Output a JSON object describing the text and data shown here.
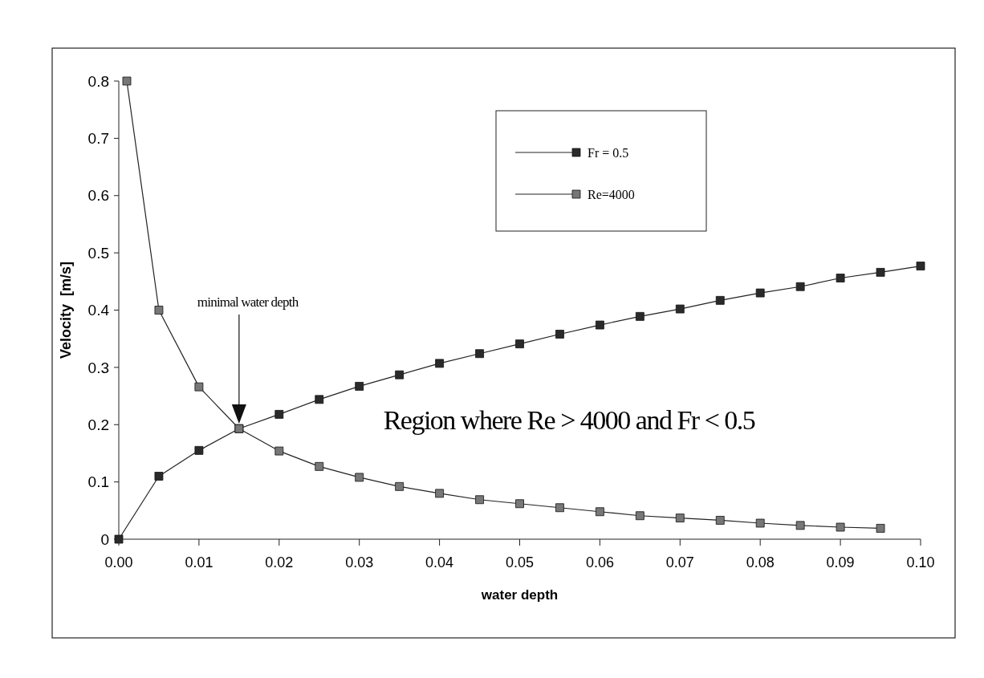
{
  "chart_data": {
    "type": "line",
    "xlabel": "water depth",
    "ylabel": "Velocity  [m/s]",
    "xlim": [
      0,
      0.1
    ],
    "ylim": [
      0,
      0.8
    ],
    "xticks": [
      {
        "value": 0,
        "label": "0.00"
      },
      {
        "value": 0.01,
        "label": "0.01"
      },
      {
        "value": 0.02,
        "label": "0.02"
      },
      {
        "value": 0.03,
        "label": "0.03"
      },
      {
        "value": 0.04,
        "label": "0.04"
      },
      {
        "value": 0.05,
        "label": "0.05"
      },
      {
        "value": 0.06,
        "label": "0.06"
      },
      {
        "value": 0.07,
        "label": "0.07"
      },
      {
        "value": 0.08,
        "label": "0.08"
      },
      {
        "value": 0.09,
        "label": "0.09"
      },
      {
        "value": 0.1,
        "label": "0.10"
      }
    ],
    "yticks": [
      0,
      0.1,
      0.2,
      0.3,
      0.4,
      0.5,
      0.6,
      0.7,
      0.8
    ],
    "grid": false,
    "legend": "top right",
    "marker": "square",
    "line_style": "solid",
    "series": [
      {
        "name": "Fr = 0.5",
        "color": "#2a2a2a",
        "x": [
          0,
          0.005,
          0.01,
          0.015,
          0.02,
          0.025,
          0.03,
          0.035,
          0.04,
          0.045,
          0.05,
          0.055,
          0.06,
          0.065,
          0.07,
          0.075,
          0.08,
          0.085,
          0.09,
          0.095,
          0.1
        ],
        "values": [
          0,
          0.11,
          0.155,
          0.193,
          0.218,
          0.244,
          0.267,
          0.287,
          0.307,
          0.324,
          0.341,
          0.358,
          0.374,
          0.389,
          0.402,
          0.417,
          0.43,
          0.441,
          0.456,
          0.466,
          0.477
        ]
      },
      {
        "name": "Re=4000",
        "color": "#777777",
        "x": [
          0.001,
          0.005,
          0.01,
          0.015,
          0.02,
          0.025,
          0.03,
          0.035,
          0.04,
          0.045,
          0.05,
          0.055,
          0.06,
          0.065,
          0.07,
          0.075,
          0.08,
          0.085,
          0.09,
          0.095
        ],
        "values": [
          0.8,
          0.4,
          0.266,
          0.193,
          0.154,
          0.127,
          0.108,
          0.092,
          0.08,
          0.069,
          0.062,
          0.055,
          0.048,
          0.041,
          0.037,
          0.033,
          0.028,
          0.024,
          0.021,
          0.019
        ]
      }
    ],
    "annotations": [
      "minimal water depth",
      "Region where Re > 4000 and Fr < 0.5"
    ]
  }
}
